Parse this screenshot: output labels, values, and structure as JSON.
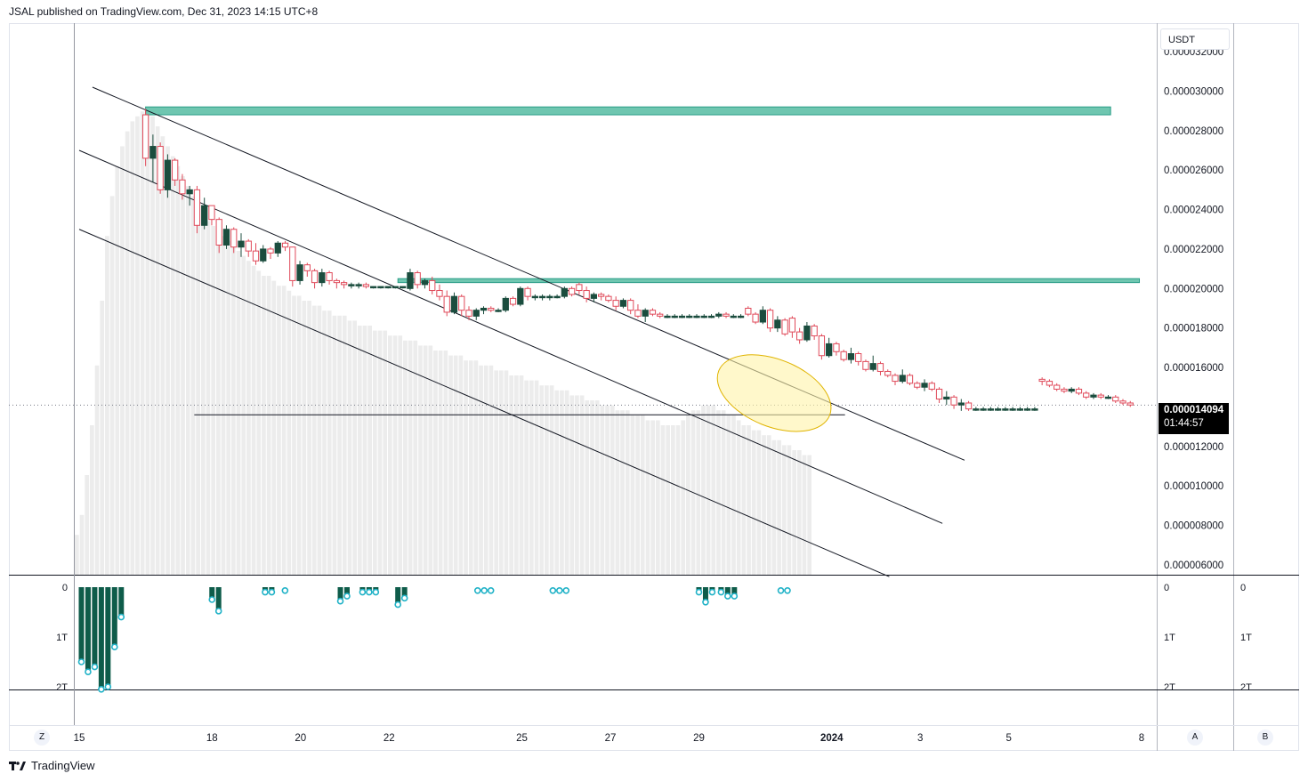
{
  "header": {
    "publisher_line": "JSAL published on TradingView.com, Dec 31, 2023 14:15 UTC+8"
  },
  "currency": "USDT",
  "price_tag": {
    "price": "0.000014094",
    "countdown": "01:44:57"
  },
  "footer": {
    "brand": "TradingView",
    "logo": "tradingview-logo-icon"
  },
  "buttons": {
    "z": "Z",
    "a": "A",
    "b": "B"
  },
  "colors": {
    "bull": "#1b4d3e",
    "bear": "#e04a5a",
    "volume": "#ececec",
    "zone_fill": "#6fc6b0",
    "zone_stroke": "#2a9d87",
    "highlight_fill": "#fff3a8",
    "highlight_stroke": "#e0b400",
    "indicator_bar": "#0e5c4a",
    "indicator_marker": "#20b2c7"
  },
  "chart_data": {
    "type": "candlestick",
    "price_axis": {
      "ticks": [
        "0.000032000",
        "0.000030000",
        "0.000028000",
        "0.000026000",
        "0.000024000",
        "0.000022000",
        "0.000020000",
        "0.000018000",
        "0.000016000",
        "0.000012000",
        "0.000010000",
        "0.000008000",
        "0.000006000"
      ],
      "range": [
        5.5e-06,
        3.34e-05
      ]
    },
    "time_axis": {
      "ticks": [
        {
          "label": "15",
          "day": 15
        },
        {
          "label": "18",
          "day": 18
        },
        {
          "label": "20",
          "day": 20
        },
        {
          "label": "22",
          "day": 22
        },
        {
          "label": "25",
          "day": 25
        },
        {
          "label": "27",
          "day": 27
        },
        {
          "label": "29",
          "day": 29
        },
        {
          "label": "2024",
          "day": 32
        },
        {
          "label": "3",
          "day": 34
        },
        {
          "label": "5",
          "day": 36
        },
        {
          "label": "8",
          "day": 39
        }
      ],
      "range": [
        14.9,
        40.1
      ]
    },
    "first_candle_day": 16.5,
    "candle_days": 0.166,
    "candles": [
      [
        2.88e-05,
        2.91e-05,
        2.62e-05,
        2.66e-05
      ],
      [
        2.66e-05,
        2.78e-05,
        2.54e-05,
        2.72e-05
      ],
      [
        2.72e-05,
        2.74e-05,
        2.48e-05,
        2.5e-05
      ],
      [
        2.5e-05,
        2.68e-05,
        2.46e-05,
        2.65e-05
      ],
      [
        2.65e-05,
        2.66e-05,
        2.52e-05,
        2.55e-05
      ],
      [
        2.55e-05,
        2.58e-05,
        2.45e-05,
        2.48e-05
      ],
      [
        2.48e-05,
        2.52e-05,
        2.42e-05,
        2.5e-05
      ],
      [
        2.5e-05,
        2.52e-05,
        2.28e-05,
        2.32e-05
      ],
      [
        2.32e-05,
        2.46e-05,
        2.3e-05,
        2.42e-05
      ],
      [
        2.42e-05,
        2.42e-05,
        2.32e-05,
        2.35e-05
      ],
      [
        2.35e-05,
        2.36e-05,
        2.18e-05,
        2.22e-05
      ],
      [
        2.22e-05,
        2.32e-05,
        2.2e-05,
        2.3e-05
      ],
      [
        2.3e-05,
        2.31e-05,
        2.18e-05,
        2.21e-05
      ],
      [
        2.21e-05,
        2.28e-05,
        2.16e-05,
        2.24e-05
      ],
      [
        2.24e-05,
        2.25e-05,
        2.16e-05,
        2.19e-05
      ],
      [
        2.19e-05,
        2.23e-05,
        2.12e-05,
        2.14e-05
      ],
      [
        2.14e-05,
        2.22e-05,
        2.13e-05,
        2.2e-05
      ],
      [
        2.2e-05,
        2.21e-05,
        2.15e-05,
        2.18e-05
      ],
      [
        2.18e-05,
        2.24e-05,
        2.16e-05,
        2.23e-05
      ],
      [
        2.23e-05,
        2.24e-05,
        2.19e-05,
        2.21e-05
      ],
      [
        2.21e-05,
        2.21e-05,
        2.01e-05,
        2.04e-05
      ],
      [
        2.04e-05,
        2.14e-05,
        2.02e-05,
        2.12e-05
      ],
      [
        2.12e-05,
        2.13e-05,
        2.06e-05,
        2.09e-05
      ],
      [
        2.09e-05,
        2.1e-05,
        2e-05,
        2.03e-05
      ],
      [
        2.03e-05,
        2.1e-05,
        2.01e-05,
        2.08e-05
      ],
      [
        2.08e-05,
        2.09e-05,
        2.02e-05,
        2.04e-05
      ],
      [
        2.04e-05,
        2.05e-05,
        2e-05,
        2.03e-05
      ],
      [
        2.03e-05,
        2.04e-05,
        2e-05,
        2.02e-05
      ],
      [
        2.02e-05,
        2.03e-05,
        2e-05,
        2.02e-05
      ],
      [
        2.02e-05,
        2.03e-05,
        2e-05,
        2.02e-05
      ],
      [
        2.02e-05,
        2.03e-05,
        2e-05,
        2.01e-05
      ],
      [
        2.01e-05,
        2.01e-05,
        2e-05,
        2.01e-05
      ],
      [
        2.01e-05,
        2.01e-05,
        2e-05,
        2.01e-05
      ],
      [
        2.01e-05,
        2.01e-05,
        2e-05,
        2.01e-05
      ],
      [
        2.01e-05,
        2.01e-05,
        2e-05,
        2.01e-05
      ],
      [
        2.01e-05,
        2.01e-05,
        2e-05,
        2.01e-05
      ],
      [
        2e-05,
        2.1e-05,
        1.99e-05,
        2.08e-05
      ],
      [
        2.08e-05,
        2.09e-05,
        2e-05,
        2.02e-05
      ],
      [
        2.02e-05,
        2.05e-05,
        2e-05,
        2.04e-05
      ],
      [
        2.04e-05,
        2.06e-05,
        1.97e-05,
        1.99e-05
      ],
      [
        1.99e-05,
        2.02e-05,
        1.94e-05,
        1.96e-05
      ],
      [
        1.96e-05,
        1.99e-05,
        1.86e-05,
        1.88e-05
      ],
      [
        1.88e-05,
        1.98e-05,
        1.87e-05,
        1.96e-05
      ],
      [
        1.96e-05,
        1.97e-05,
        1.86e-05,
        1.89e-05
      ],
      [
        1.89e-05,
        1.91e-05,
        1.84e-05,
        1.86e-05
      ],
      [
        1.86e-05,
        1.9e-05,
        1.84e-05,
        1.89e-05
      ],
      [
        1.89e-05,
        1.91e-05,
        1.87e-05,
        1.9e-05
      ],
      [
        1.9e-05,
        1.91e-05,
        1.88e-05,
        1.89e-05
      ],
      [
        1.89e-05,
        1.9e-05,
        1.88e-05,
        1.89e-05
      ],
      [
        1.89e-05,
        1.96e-05,
        1.88e-05,
        1.95e-05
      ],
      [
        1.95e-05,
        1.96e-05,
        1.91e-05,
        1.92e-05
      ],
      [
        1.92e-05,
        2.01e-05,
        1.91e-05,
        2e-05
      ],
      [
        2e-05,
        2.01e-05,
        1.94e-05,
        1.96e-05
      ],
      [
        1.96e-05,
        1.97e-05,
        1.94e-05,
        1.96e-05
      ],
      [
        1.96e-05,
        1.97e-05,
        1.94e-05,
        1.96e-05
      ],
      [
        1.96e-05,
        1.97e-05,
        1.94e-05,
        1.96e-05
      ],
      [
        1.96e-05,
        1.97e-05,
        1.95e-05,
        1.96e-05
      ],
      [
        1.96e-05,
        2.01e-05,
        1.95e-05,
        2e-05
      ],
      [
        2e-05,
        2.01e-05,
        1.96e-05,
        1.97e-05
      ],
      [
        2.02e-05,
        2.03e-05,
        1.97e-05,
        1.99e-05
      ],
      [
        1.99e-05,
        2.01e-05,
        1.93e-05,
        1.95e-05
      ],
      [
        1.95e-05,
        1.98e-05,
        1.93e-05,
        1.97e-05
      ],
      [
        1.97e-05,
        1.98e-05,
        1.94e-05,
        1.96e-05
      ],
      [
        1.96e-05,
        1.97e-05,
        1.93e-05,
        1.94e-05
      ],
      [
        1.94e-05,
        1.96e-05,
        1.89e-05,
        1.91e-05
      ],
      [
        1.91e-05,
        1.95e-05,
        1.9e-05,
        1.94e-05
      ],
      [
        1.94e-05,
        1.95e-05,
        1.87e-05,
        1.89e-05
      ],
      [
        1.89e-05,
        1.92e-05,
        1.85e-05,
        1.86e-05
      ],
      [
        1.86e-05,
        1.9e-05,
        1.83e-05,
        1.89e-05
      ],
      [
        1.89e-05,
        1.9e-05,
        1.86e-05,
        1.87e-05
      ],
      [
        1.87e-05,
        1.88e-05,
        1.85e-05,
        1.86e-05
      ],
      [
        1.86e-05,
        1.87e-05,
        1.85e-05,
        1.86e-05
      ],
      [
        1.86e-05,
        1.87e-05,
        1.85e-05,
        1.86e-05
      ],
      [
        1.86e-05,
        1.87e-05,
        1.85e-05,
        1.86e-05
      ],
      [
        1.86e-05,
        1.87e-05,
        1.85e-05,
        1.86e-05
      ],
      [
        1.86e-05,
        1.87e-05,
        1.85e-05,
        1.86e-05
      ],
      [
        1.86e-05,
        1.87e-05,
        1.85e-05,
        1.86e-05
      ],
      [
        1.86e-05,
        1.87e-05,
        1.85e-05,
        1.86e-05
      ],
      [
        1.86e-05,
        1.88e-05,
        1.85e-05,
        1.87e-05
      ],
      [
        1.87e-05,
        1.88e-05,
        1.85e-05,
        1.86e-05
      ],
      [
        1.86e-05,
        1.87e-05,
        1.85e-05,
        1.86e-05
      ],
      [
        1.86e-05,
        1.87e-05,
        1.85e-05,
        1.86e-05
      ],
      [
        1.9e-05,
        1.91e-05,
        1.86e-05,
        1.87e-05
      ],
      [
        1.87e-05,
        1.88e-05,
        1.82e-05,
        1.83e-05
      ],
      [
        1.83e-05,
        1.91e-05,
        1.82e-05,
        1.89e-05
      ],
      [
        1.89e-05,
        1.9e-05,
        1.78e-05,
        1.8e-05
      ],
      [
        1.8e-05,
        1.86e-05,
        1.78e-05,
        1.84e-05
      ],
      [
        1.84e-05,
        1.85e-05,
        1.76e-05,
        1.77e-05
      ],
      [
        1.85e-05,
        1.86e-05,
        1.75e-05,
        1.78e-05
      ],
      [
        1.78e-05,
        1.8e-05,
        1.72e-05,
        1.74e-05
      ],
      [
        1.74e-05,
        1.83e-05,
        1.73e-05,
        1.81e-05
      ],
      [
        1.81e-05,
        1.82e-05,
        1.74e-05,
        1.76e-05
      ],
      [
        1.76e-05,
        1.77e-05,
        1.64e-05,
        1.66e-05
      ],
      [
        1.66e-05,
        1.75e-05,
        1.65e-05,
        1.72e-05
      ],
      [
        1.72e-05,
        1.73e-05,
        1.66e-05,
        1.68e-05
      ],
      [
        1.68e-05,
        1.69e-05,
        1.63e-05,
        1.64e-05
      ],
      [
        1.64e-05,
        1.7e-05,
        1.62e-05,
        1.67e-05
      ],
      [
        1.67e-05,
        1.68e-05,
        1.61e-05,
        1.63e-05
      ],
      [
        1.63e-05,
        1.64e-05,
        1.58e-05,
        1.59e-05
      ],
      [
        1.59e-05,
        1.66e-05,
        1.58e-05,
        1.62e-05
      ],
      [
        1.62e-05,
        1.63e-05,
        1.56e-05,
        1.58e-05
      ],
      [
        1.58e-05,
        1.59e-05,
        1.55e-05,
        1.56e-05
      ],
      [
        1.56e-05,
        1.57e-05,
        1.51e-05,
        1.53e-05
      ],
      [
        1.53e-05,
        1.59e-05,
        1.52e-05,
        1.56e-05
      ],
      [
        1.56e-05,
        1.57e-05,
        1.51e-05,
        1.52e-05
      ],
      [
        1.52e-05,
        1.53e-05,
        1.49e-05,
        1.5e-05
      ],
      [
        1.5e-05,
        1.54e-05,
        1.48e-05,
        1.52e-05
      ],
      [
        1.52e-05,
        1.53e-05,
        1.48e-05,
        1.49e-05
      ],
      [
        1.49e-05,
        1.5e-05,
        1.42e-05,
        1.44e-05
      ],
      [
        1.44e-05,
        1.48e-05,
        1.41e-05,
        1.45e-05
      ],
      [
        1.45e-05,
        1.46e-05,
        1.39e-05,
        1.41e-05
      ],
      [
        1.41e-05,
        1.44e-05,
        1.38e-05,
        1.42e-05
      ],
      [
        1.42e-05,
        1.43e-05,
        1.38e-05,
        1.39e-05
      ],
      [
        1.39e-05,
        1.4e-05,
        1.38e-05,
        1.39e-05
      ],
      [
        1.39e-05,
        1.4e-05,
        1.38e-05,
        1.39e-05
      ],
      [
        1.39e-05,
        1.4e-05,
        1.38e-05,
        1.39e-05
      ],
      [
        1.39e-05,
        1.4e-05,
        1.38e-05,
        1.39e-05
      ],
      [
        1.39e-05,
        1.4e-05,
        1.38e-05,
        1.39e-05
      ],
      [
        1.39e-05,
        1.4e-05,
        1.38e-05,
        1.39e-05
      ],
      [
        1.39e-05,
        1.4e-05,
        1.38e-05,
        1.39e-05
      ],
      [
        1.39e-05,
        1.4e-05,
        1.38e-05,
        1.39e-05
      ],
      [
        1.39e-05,
        1.4e-05,
        1.38e-05,
        1.39e-05
      ],
      [
        1.54e-05,
        1.55e-05,
        1.51e-05,
        1.53e-05
      ],
      [
        1.53e-05,
        1.54e-05,
        1.5e-05,
        1.51e-05
      ],
      [
        1.51e-05,
        1.52e-05,
        1.48e-05,
        1.49e-05
      ],
      [
        1.49e-05,
        1.5e-05,
        1.47e-05,
        1.48e-05
      ],
      [
        1.48e-05,
        1.5e-05,
        1.47e-05,
        1.49e-05
      ],
      [
        1.49e-05,
        1.5e-05,
        1.46e-05,
        1.47e-05
      ],
      [
        1.47e-05,
        1.48e-05,
        1.44e-05,
        1.45e-05
      ],
      [
        1.45e-05,
        1.47e-05,
        1.44e-05,
        1.46e-05
      ],
      [
        1.46e-05,
        1.47e-05,
        1.44e-05,
        1.45e-05
      ],
      [
        1.45e-05,
        1.46e-05,
        1.44e-05,
        1.45e-05
      ],
      [
        1.45e-05,
        1.46e-05,
        1.42e-05,
        1.43e-05
      ],
      [
        1.43e-05,
        1.44e-05,
        1.41e-05,
        1.42e-05
      ],
      [
        1.42e-05,
        1.43e-05,
        1.4e-05,
        1.41e-05
      ]
    ],
    "volume_heights": [
      0.08,
      0.12,
      0.2,
      0.3,
      0.42,
      0.55,
      0.68,
      0.76,
      0.82,
      0.86,
      0.89,
      0.91,
      0.92,
      0.93,
      0.93,
      0.92,
      0.9,
      0.88,
      0.86,
      0.84,
      0.82,
      0.8,
      0.78,
      0.76,
      0.74,
      0.72,
      0.71,
      0.7,
      0.69,
      0.68,
      0.67,
      0.66,
      0.65,
      0.64,
      0.63,
      0.62,
      0.61,
      0.6,
      0.6,
      0.59,
      0.58,
      0.58,
      0.57,
      0.56,
      0.56,
      0.55,
      0.55,
      0.54,
      0.54,
      0.53,
      0.53,
      0.52,
      0.52,
      0.52,
      0.51,
      0.51,
      0.5,
      0.5,
      0.5,
      0.49,
      0.49,
      0.49,
      0.48,
      0.48,
      0.48,
      0.47,
      0.47,
      0.47,
      0.46,
      0.46,
      0.46,
      0.45,
      0.45,
      0.45,
      0.44,
      0.44,
      0.44,
      0.43,
      0.43,
      0.43,
      0.42,
      0.42,
      0.42,
      0.41,
      0.41,
      0.41,
      0.4,
      0.4,
      0.4,
      0.39,
      0.39,
      0.39,
      0.38,
      0.38,
      0.38,
      0.37,
      0.37,
      0.37,
      0.36,
      0.36,
      0.36,
      0.35,
      0.35,
      0.35,
      0.34,
      0.34,
      0.34,
      0.33,
      0.33,
      0.33,
      0.32,
      0.32,
      0.32,
      0.31,
      0.31,
      0.31,
      0.3,
      0.3,
      0.3,
      0.3,
      0.31,
      0.32,
      0.33,
      0.33,
      0.34,
      0.34,
      0.34,
      0.33,
      0.33,
      0.32,
      0.32,
      0.31,
      0.3,
      0.3,
      0.29,
      0.29,
      0.28,
      0.28,
      0.27,
      0.27,
      0.26,
      0.26,
      0.25,
      0.25,
      0.24,
      0.24
    ],
    "volume_start_day": 15,
    "resistance_zones": [
      {
        "from_day": 16.5,
        "to_day": 38.3,
        "low": 2.88e-05,
        "high": 2.92e-05
      },
      {
        "from_day": 22.2,
        "to_day": 38.95,
        "low": 2.03e-05,
        "high": 2.05e-05
      }
    ],
    "channel_lines": [
      {
        "from": [
          15.3,
          3.02e-05
        ],
        "to": [
          35.0,
          1.13e-05
        ]
      },
      {
        "from": [
          15.0,
          2.7e-05
        ],
        "to": [
          34.5,
          8.1e-06
        ]
      },
      {
        "from": [
          15.0,
          2.3e-05
        ],
        "to": [
          33.3,
          5.4e-06
        ]
      }
    ],
    "horizontal_line": {
      "from_day": 17.6,
      "to_day": 32.3,
      "price": 1.36e-05
    },
    "current_price_line": {
      "price": 1.4094e-05
    },
    "highlight": {
      "center_day": 30.7,
      "center_price": 1.47e-05,
      "rx_days": 1.35,
      "ry_price": 1.7e-06,
      "rotation_deg": 22
    },
    "indicator": {
      "ticks": [
        "0",
        "1T",
        "2T"
      ],
      "range": [
        0,
        2
      ],
      "bars": [
        {
          "day": 15.05,
          "value": 1.5
        },
        {
          "day": 15.2,
          "value": 1.7
        },
        {
          "day": 15.35,
          "value": 1.6
        },
        {
          "day": 15.5,
          "value": 2.05
        },
        {
          "day": 15.65,
          "value": 2.0
        },
        {
          "day": 15.8,
          "value": 1.2
        },
        {
          "day": 15.95,
          "value": 0.6
        },
        {
          "day": 18.0,
          "value": 0.25
        },
        {
          "day": 18.15,
          "value": 0.48
        },
        {
          "day": 19.2,
          "value": 0.1
        },
        {
          "day": 19.35,
          "value": 0.1
        },
        {
          "day": 20.9,
          "value": 0.28
        },
        {
          "day": 21.05,
          "value": 0.18
        },
        {
          "day": 21.4,
          "value": 0.1
        },
        {
          "day": 21.55,
          "value": 0.1
        },
        {
          "day": 21.7,
          "value": 0.1
        },
        {
          "day": 22.2,
          "value": 0.35
        },
        {
          "day": 22.35,
          "value": 0.22
        },
        {
          "day": 29.0,
          "value": 0.1
        },
        {
          "day": 29.15,
          "value": 0.3
        },
        {
          "day": 29.3,
          "value": 0.1
        },
        {
          "day": 29.5,
          "value": 0.1
        },
        {
          "day": 29.65,
          "value": 0.18
        },
        {
          "day": 29.8,
          "value": 0.18
        }
      ],
      "markers_only": [
        {
          "day": 19.65,
          "value": 0.05
        },
        {
          "day": 24.0,
          "value": 0.05
        },
        {
          "day": 24.15,
          "value": 0.05
        },
        {
          "day": 24.3,
          "value": 0.05
        },
        {
          "day": 25.7,
          "value": 0.05
        },
        {
          "day": 25.85,
          "value": 0.05
        },
        {
          "day": 26.0,
          "value": 0.05
        },
        {
          "day": 30.85,
          "value": 0.05
        },
        {
          "day": 31.0,
          "value": 0.05
        }
      ]
    }
  }
}
